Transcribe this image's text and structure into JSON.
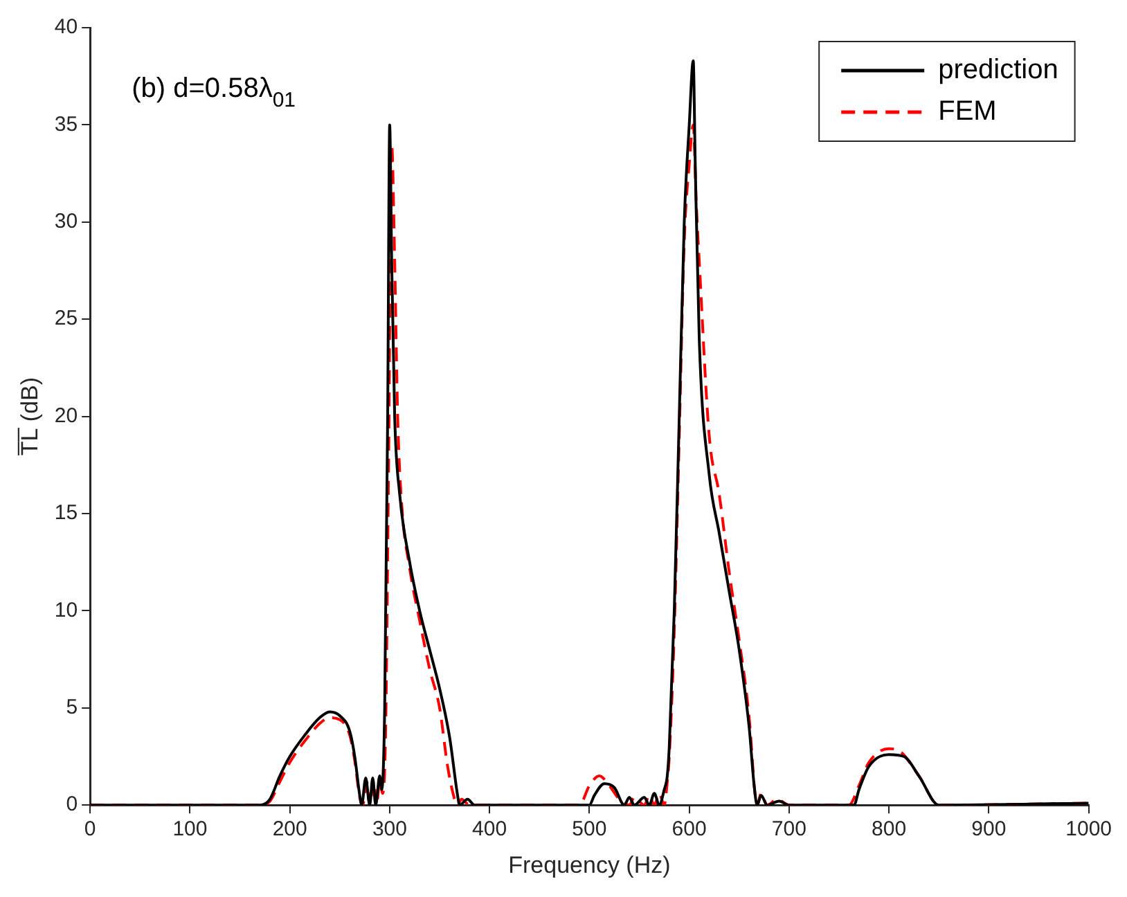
{
  "chart_data": {
    "type": "line",
    "xlabel": "Frequency (Hz)",
    "ylabel": "T̅L̅ (dB)",
    "annotations": [
      "(b) d=0.58λ$_{01}$"
    ],
    "xlim": [
      0,
      1000
    ],
    "xticks": [
      0,
      100,
      200,
      300,
      400,
      500,
      600,
      700,
      800,
      900,
      1000
    ],
    "ylim": [
      0,
      40
    ],
    "yticks": [
      0,
      5,
      10,
      15,
      20,
      25,
      30,
      35,
      40
    ],
    "grid": false,
    "legend": "top right",
    "marker": "none",
    "series": [
      {
        "name": "prediction",
        "color": "#000000",
        "line_style": "solid",
        "x": [
          0,
          100,
          170,
          180,
          190,
          200,
          215,
          230,
          240,
          250,
          260,
          265,
          270,
          272,
          276,
          280,
          283,
          286,
          290,
          292,
          295,
          298,
          300,
          302,
          305,
          310,
          320,
          330,
          340,
          350,
          360,
          368,
          370,
          378,
          385,
          500,
          505,
          515,
          525,
          535,
          540,
          545,
          555,
          560,
          565,
          570,
          575,
          578,
          580,
          585,
          590,
          595,
          600,
          604,
          606,
          610,
          620,
          630,
          640,
          650,
          660,
          665,
          668,
          672,
          678,
          690,
          700,
          765,
          770,
          780,
          800,
          815,
          830,
          850,
          1000
        ],
        "values": [
          0,
          0,
          0,
          0.3,
          1.5,
          2.5,
          3.6,
          4.5,
          4.8,
          4.6,
          3.8,
          2.5,
          0.5,
          0,
          1.4,
          0,
          1.4,
          0,
          1.5,
          0.8,
          5,
          20,
          35,
          28,
          20,
          16,
          12.5,
          10,
          8,
          6,
          3.5,
          0.5,
          0,
          0.3,
          0,
          0,
          0.5,
          1.1,
          0.9,
          0,
          0.4,
          0,
          0.4,
          0,
          0.6,
          0,
          0.8,
          1.5,
          3,
          10,
          20,
          30,
          35,
          38.3,
          33,
          24,
          17,
          14,
          11,
          8,
          4,
          1,
          0,
          0.5,
          0,
          0.2,
          0,
          0,
          0.8,
          2,
          2.6,
          2.5,
          1.5,
          0,
          0.1
        ]
      },
      {
        "name": "FEM",
        "color": "#ff0000",
        "line_style": "dashed",
        "x": [
          0,
          100,
          170,
          180,
          190,
          200,
          215,
          230,
          240,
          250,
          260,
          265,
          270,
          273,
          277,
          280,
          284,
          287,
          290,
          293,
          296,
          299,
          302,
          305,
          308,
          312,
          320,
          330,
          340,
          350,
          358,
          365,
          368,
          372,
          380,
          490,
          500,
          510,
          520,
          530,
          540,
          545,
          555,
          560,
          565,
          570,
          575,
          578,
          580,
          585,
          590,
          595,
          600,
          604,
          607,
          610,
          620,
          630,
          640,
          650,
          660,
          666,
          668,
          672,
          678,
          688,
          700,
          760,
          770,
          780,
          800,
          810,
          830,
          850,
          1000
        ],
        "values": [
          0,
          0,
          0,
          0.2,
          1.2,
          2.2,
          3.3,
          4.2,
          4.5,
          4.4,
          3.6,
          2.3,
          0.4,
          0,
          1.2,
          0,
          1.2,
          0,
          1.3,
          0.6,
          4,
          18,
          34,
          28,
          20,
          15.5,
          12.2,
          9.5,
          7,
          5,
          2,
          0.3,
          0,
          0.3,
          0,
          0,
          1,
          1.5,
          1,
          0.3,
          0,
          0.4,
          0,
          0.5,
          0,
          0.6,
          0,
          1.2,
          2.5,
          9,
          19,
          29,
          33,
          35,
          31,
          28,
          19,
          16,
          12,
          8.5,
          4.5,
          0.5,
          0,
          0.6,
          0,
          0.3,
          0,
          0,
          1,
          2.2,
          2.9,
          2.8,
          1.5,
          0,
          0.1
        ]
      }
    ]
  }
}
